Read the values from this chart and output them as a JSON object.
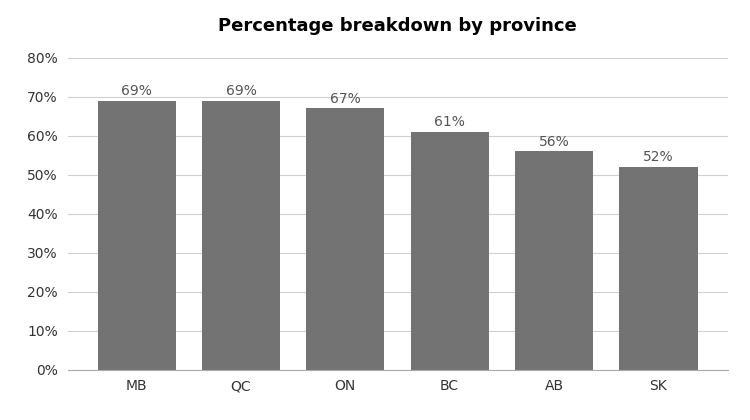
{
  "title": "Percentage breakdown by province",
  "categories": [
    "MB",
    "QC",
    "ON",
    "BC",
    "AB",
    "SK"
  ],
  "values": [
    0.69,
    0.69,
    0.67,
    0.61,
    0.56,
    0.52
  ],
  "labels": [
    "69%",
    "69%",
    "67%",
    "61%",
    "56%",
    "52%"
  ],
  "bar_color": "#737373",
  "ylim": [
    0,
    0.84
  ],
  "yticks": [
    0.0,
    0.1,
    0.2,
    0.3,
    0.4,
    0.5,
    0.6,
    0.7,
    0.8
  ],
  "ytick_labels": [
    "0%",
    "10%",
    "20%",
    "30%",
    "40%",
    "50%",
    "60%",
    "70%",
    "80%"
  ],
  "title_fontsize": 13,
  "tick_fontsize": 10,
  "label_fontsize": 10,
  "background_color": "#ffffff",
  "grid_color": "#d0d0d0",
  "bar_width": 0.75
}
